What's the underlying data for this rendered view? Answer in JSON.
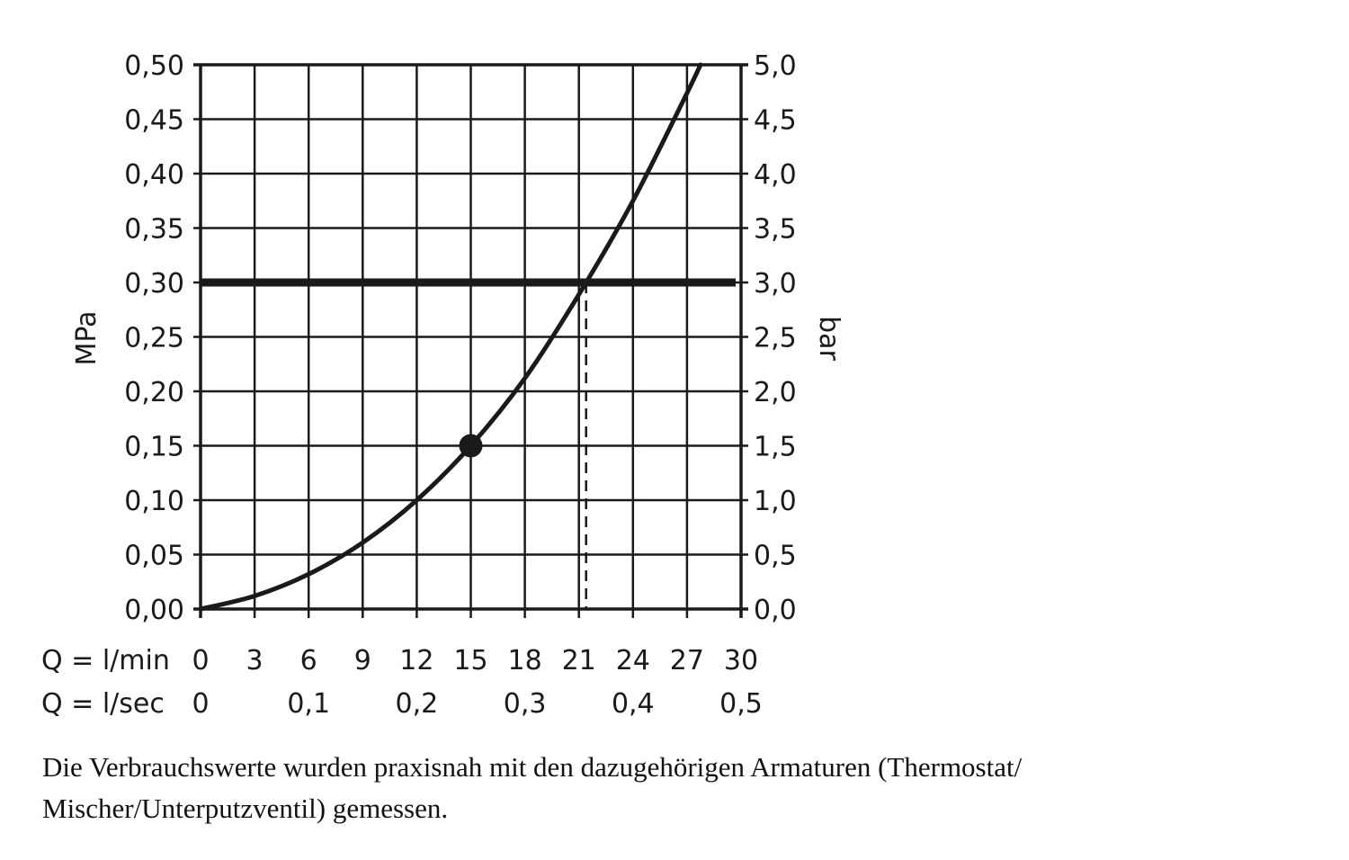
{
  "chart_data": {
    "type": "line",
    "ylabel_left": "MPa",
    "ylabel_right": "bar",
    "xlim": [
      0,
      30
    ],
    "ylim": [
      0,
      0.5
    ],
    "grid": true,
    "x_ticks_lmin": [
      "0",
      "3",
      "6",
      "9",
      "12",
      "15",
      "18",
      "21",
      "24",
      "27",
      "30"
    ],
    "x_ticks_lmin_values": [
      0,
      3,
      6,
      9,
      12,
      15,
      18,
      21,
      24,
      27,
      30
    ],
    "x_row_label_lmin": "Q = l/min",
    "x_ticks_lsec": [
      "0",
      "0,1",
      "0,2",
      "0,3",
      "0,4",
      "0,5"
    ],
    "x_ticks_lsec_values": [
      0,
      6,
      12,
      18,
      24,
      30
    ],
    "x_row_label_lsec": "Q = l/sec",
    "y_ticks_left": [
      "0,00",
      "0,05",
      "0,10",
      "0,15",
      "0,20",
      "0,25",
      "0,30",
      "0,35",
      "0,40",
      "0,45",
      "0,50"
    ],
    "y_ticks_right": [
      "0,0",
      "0,5",
      "1,0",
      "1,5",
      "2,0",
      "2,5",
      "3,0",
      "3,5",
      "4,0",
      "4,5",
      "5,0"
    ],
    "y_tick_values": [
      0,
      0.05,
      0.1,
      0.15,
      0.2,
      0.25,
      0.3,
      0.35,
      0.4,
      0.45,
      0.5
    ],
    "series": [
      {
        "x": [
          0,
          3,
          6,
          9,
          12,
          15,
          18,
          21,
          24,
          27,
          27.75
        ],
        "y": [
          0,
          0.012,
          0.032,
          0.061,
          0.1,
          0.15,
          0.212,
          0.289,
          0.375,
          0.474,
          0.5
        ]
      }
    ],
    "reference_line_y": 0.3,
    "dashed_line_x": 21.4,
    "marker_point": {
      "x": 15,
      "y": 0.15
    },
    "color": "#1a1a1a"
  },
  "caption": "Die Verbrauchswerte wurden praxisnah mit den dazugehörigen Armaturen (Thermostat/ Mischer/Unterputzventil) gemessen."
}
